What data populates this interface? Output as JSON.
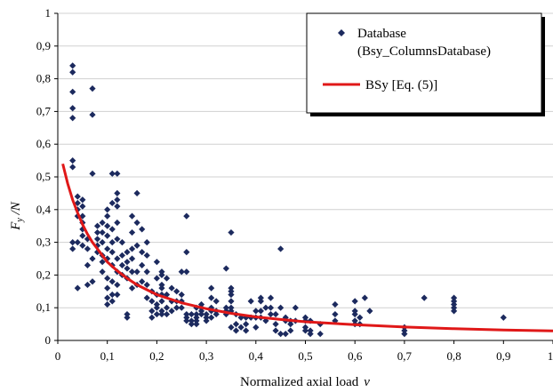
{
  "chart_data": {
    "type": "scatter",
    "xlabel_text": "Normalized axial load",
    "xlabel_symbol": "ν",
    "ylabel_main": "F",
    "ylabel_sub": "y",
    "ylabel_rest": " /N",
    "xlim": [
      0,
      1
    ],
    "ylim": [
      0,
      1
    ],
    "xticks": [
      "0",
      "0,1",
      "0,2",
      "0,3",
      "0,4",
      "0,5",
      "0,6",
      "0,7",
      "0,8",
      "0,9",
      "1"
    ],
    "yticks": [
      "0",
      "0,1",
      "0,2",
      "0,3",
      "0,4",
      "0,5",
      "0,6",
      "0,7",
      "0,8",
      "0,9",
      "1"
    ],
    "grid": true,
    "legend_position": "top-right",
    "series": [
      {
        "name_line1": "Database",
        "name_line2": "(Bsy_ColumnsDatabase)",
        "kind": "scatter",
        "color": "#1c2a5e",
        "points": [
          [
            0.03,
            0.84
          ],
          [
            0.03,
            0.82
          ],
          [
            0.03,
            0.76
          ],
          [
            0.03,
            0.71
          ],
          [
            0.03,
            0.68
          ],
          [
            0.07,
            0.77
          ],
          [
            0.07,
            0.69
          ],
          [
            0.03,
            0.55
          ],
          [
            0.03,
            0.53
          ],
          [
            0.04,
            0.44
          ],
          [
            0.04,
            0.42
          ],
          [
            0.04,
            0.4
          ],
          [
            0.04,
            0.38
          ],
          [
            0.05,
            0.43
          ],
          [
            0.05,
            0.41
          ],
          [
            0.05,
            0.38
          ],
          [
            0.05,
            0.36
          ],
          [
            0.04,
            0.3
          ],
          [
            0.03,
            0.3
          ],
          [
            0.03,
            0.28
          ],
          [
            0.05,
            0.29
          ],
          [
            0.06,
            0.28
          ],
          [
            0.06,
            0.23
          ],
          [
            0.07,
            0.25
          ],
          [
            0.07,
            0.18
          ],
          [
            0.04,
            0.16
          ],
          [
            0.06,
            0.17
          ],
          [
            0.05,
            0.34
          ],
          [
            0.05,
            0.32
          ],
          [
            0.06,
            0.31
          ],
          [
            0.07,
            0.51
          ],
          [
            0.08,
            0.35
          ],
          [
            0.08,
            0.33
          ],
          [
            0.08,
            0.31
          ],
          [
            0.08,
            0.29
          ],
          [
            0.08,
            0.27
          ],
          [
            0.09,
            0.36
          ],
          [
            0.09,
            0.33
          ],
          [
            0.09,
            0.3
          ],
          [
            0.09,
            0.26
          ],
          [
            0.09,
            0.24
          ],
          [
            0.09,
            0.21
          ],
          [
            0.1,
            0.4
          ],
          [
            0.1,
            0.38
          ],
          [
            0.1,
            0.35
          ],
          [
            0.1,
            0.32
          ],
          [
            0.1,
            0.28
          ],
          [
            0.1,
            0.25
          ],
          [
            0.1,
            0.19
          ],
          [
            0.1,
            0.16
          ],
          [
            0.1,
            0.13
          ],
          [
            0.1,
            0.11
          ],
          [
            0.11,
            0.51
          ],
          [
            0.11,
            0.42
          ],
          [
            0.11,
            0.34
          ],
          [
            0.11,
            0.3
          ],
          [
            0.11,
            0.27
          ],
          [
            0.11,
            0.23
          ],
          [
            0.11,
            0.18
          ],
          [
            0.11,
            0.14
          ],
          [
            0.11,
            0.12
          ],
          [
            0.12,
            0.51
          ],
          [
            0.12,
            0.45
          ],
          [
            0.12,
            0.43
          ],
          [
            0.12,
            0.41
          ],
          [
            0.12,
            0.36
          ],
          [
            0.12,
            0.31
          ],
          [
            0.12,
            0.25
          ],
          [
            0.12,
            0.21
          ],
          [
            0.12,
            0.17
          ],
          [
            0.12,
            0.14
          ],
          [
            0.13,
            0.3
          ],
          [
            0.13,
            0.26
          ],
          [
            0.13,
            0.23
          ],
          [
            0.13,
            0.2
          ],
          [
            0.14,
            0.27
          ],
          [
            0.14,
            0.24
          ],
          [
            0.14,
            0.22
          ],
          [
            0.14,
            0.19
          ],
          [
            0.14,
            0.08
          ],
          [
            0.14,
            0.07
          ],
          [
            0.15,
            0.38
          ],
          [
            0.15,
            0.33
          ],
          [
            0.15,
            0.28
          ],
          [
            0.15,
            0.25
          ],
          [
            0.15,
            0.21
          ],
          [
            0.15,
            0.16
          ],
          [
            0.16,
            0.45
          ],
          [
            0.16,
            0.36
          ],
          [
            0.16,
            0.29
          ],
          [
            0.16,
            0.21
          ],
          [
            0.16,
            0.17
          ],
          [
            0.17,
            0.34
          ],
          [
            0.17,
            0.27
          ],
          [
            0.17,
            0.23
          ],
          [
            0.17,
            0.18
          ],
          [
            0.18,
            0.3
          ],
          [
            0.18,
            0.26
          ],
          [
            0.18,
            0.21
          ],
          [
            0.18,
            0.17
          ],
          [
            0.18,
            0.13
          ],
          [
            0.19,
            0.15
          ],
          [
            0.19,
            0.12
          ],
          [
            0.19,
            0.09
          ],
          [
            0.19,
            0.07
          ],
          [
            0.2,
            0.24
          ],
          [
            0.2,
            0.19
          ],
          [
            0.2,
            0.14
          ],
          [
            0.2,
            0.11
          ],
          [
            0.2,
            0.1
          ],
          [
            0.2,
            0.08
          ],
          [
            0.21,
            0.21
          ],
          [
            0.21,
            0.2
          ],
          [
            0.21,
            0.17
          ],
          [
            0.21,
            0.16
          ],
          [
            0.21,
            0.14
          ],
          [
            0.21,
            0.12
          ],
          [
            0.21,
            0.09
          ],
          [
            0.21,
            0.08
          ],
          [
            0.22,
            0.19
          ],
          [
            0.22,
            0.14
          ],
          [
            0.22,
            0.1
          ],
          [
            0.22,
            0.08
          ],
          [
            0.23,
            0.16
          ],
          [
            0.23,
            0.12
          ],
          [
            0.23,
            0.09
          ],
          [
            0.24,
            0.15
          ],
          [
            0.24,
            0.12
          ],
          [
            0.24,
            0.1
          ],
          [
            0.25,
            0.21
          ],
          [
            0.25,
            0.14
          ],
          [
            0.25,
            0.12
          ],
          [
            0.25,
            0.1
          ],
          [
            0.26,
            0.38
          ],
          [
            0.26,
            0.27
          ],
          [
            0.26,
            0.21
          ],
          [
            0.26,
            0.08
          ],
          [
            0.26,
            0.07
          ],
          [
            0.26,
            0.06
          ],
          [
            0.27,
            0.08
          ],
          [
            0.27,
            0.06
          ],
          [
            0.27,
            0.05
          ],
          [
            0.28,
            0.1
          ],
          [
            0.28,
            0.08
          ],
          [
            0.28,
            0.07
          ],
          [
            0.28,
            0.06
          ],
          [
            0.28,
            0.05
          ],
          [
            0.29,
            0.11
          ],
          [
            0.29,
            0.1
          ],
          [
            0.29,
            0.09
          ],
          [
            0.29,
            0.08
          ],
          [
            0.3,
            0.08
          ],
          [
            0.3,
            0.07
          ],
          [
            0.3,
            0.06
          ],
          [
            0.31,
            0.16
          ],
          [
            0.31,
            0.13
          ],
          [
            0.31,
            0.1
          ],
          [
            0.31,
            0.09
          ],
          [
            0.31,
            0.07
          ],
          [
            0.32,
            0.12
          ],
          [
            0.32,
            0.09
          ],
          [
            0.32,
            0.08
          ],
          [
            0.34,
            0.22
          ],
          [
            0.34,
            0.1
          ],
          [
            0.34,
            0.09
          ],
          [
            0.34,
            0.08
          ],
          [
            0.35,
            0.33
          ],
          [
            0.35,
            0.16
          ],
          [
            0.35,
            0.15
          ],
          [
            0.35,
            0.14
          ],
          [
            0.35,
            0.12
          ],
          [
            0.35,
            0.1
          ],
          [
            0.35,
            0.09
          ],
          [
            0.35,
            0.04
          ],
          [
            0.36,
            0.08
          ],
          [
            0.36,
            0.05
          ],
          [
            0.36,
            0.03
          ],
          [
            0.37,
            0.07
          ],
          [
            0.37,
            0.04
          ],
          [
            0.38,
            0.07
          ],
          [
            0.38,
            0.05
          ],
          [
            0.38,
            0.03
          ],
          [
            0.39,
            0.12
          ],
          [
            0.39,
            0.07
          ],
          [
            0.4,
            0.09
          ],
          [
            0.4,
            0.07
          ],
          [
            0.4,
            0.04
          ],
          [
            0.41,
            0.13
          ],
          [
            0.41,
            0.12
          ],
          [
            0.41,
            0.09
          ],
          [
            0.41,
            0.07
          ],
          [
            0.42,
            0.1
          ],
          [
            0.42,
            0.06
          ],
          [
            0.43,
            0.13
          ],
          [
            0.43,
            0.1
          ],
          [
            0.43,
            0.08
          ],
          [
            0.44,
            0.08
          ],
          [
            0.44,
            0.05
          ],
          [
            0.44,
            0.03
          ],
          [
            0.45,
            0.28
          ],
          [
            0.45,
            0.1
          ],
          [
            0.45,
            0.02
          ],
          [
            0.46,
            0.07
          ],
          [
            0.46,
            0.06
          ],
          [
            0.46,
            0.02
          ],
          [
            0.47,
            0.06
          ],
          [
            0.47,
            0.05
          ],
          [
            0.47,
            0.03
          ],
          [
            0.48,
            0.1
          ],
          [
            0.48,
            0.06
          ],
          [
            0.5,
            0.07
          ],
          [
            0.5,
            0.06
          ],
          [
            0.5,
            0.04
          ],
          [
            0.5,
            0.03
          ],
          [
            0.51,
            0.06
          ],
          [
            0.51,
            0.03
          ],
          [
            0.51,
            0.02
          ],
          [
            0.53,
            0.05
          ],
          [
            0.53,
            0.02
          ],
          [
            0.56,
            0.11
          ],
          [
            0.56,
            0.08
          ],
          [
            0.56,
            0.06
          ],
          [
            0.6,
            0.12
          ],
          [
            0.6,
            0.09
          ],
          [
            0.6,
            0.08
          ],
          [
            0.6,
            0.06
          ],
          [
            0.6,
            0.05
          ],
          [
            0.61,
            0.07
          ],
          [
            0.61,
            0.05
          ],
          [
            0.62,
            0.13
          ],
          [
            0.63,
            0.09
          ],
          [
            0.7,
            0.04
          ],
          [
            0.7,
            0.03
          ],
          [
            0.7,
            0.02
          ],
          [
            0.74,
            0.13
          ],
          [
            0.8,
            0.13
          ],
          [
            0.8,
            0.12
          ],
          [
            0.8,
            0.11
          ],
          [
            0.8,
            0.1
          ],
          [
            0.8,
            0.09
          ],
          [
            0.9,
            0.07
          ]
        ]
      },
      {
        "name": "BSy  [Eq. (5)]",
        "kind": "line",
        "color": "#e01818",
        "points": [
          [
            0.01,
            0.54
          ],
          [
            0.02,
            0.48
          ],
          [
            0.03,
            0.43
          ],
          [
            0.04,
            0.39
          ],
          [
            0.05,
            0.355
          ],
          [
            0.06,
            0.325
          ],
          [
            0.07,
            0.3
          ],
          [
            0.08,
            0.28
          ],
          [
            0.09,
            0.26
          ],
          [
            0.1,
            0.24
          ],
          [
            0.12,
            0.213
          ],
          [
            0.14,
            0.19
          ],
          [
            0.16,
            0.17
          ],
          [
            0.18,
            0.155
          ],
          [
            0.2,
            0.14
          ],
          [
            0.25,
            0.115
          ],
          [
            0.3,
            0.097
          ],
          [
            0.35,
            0.083
          ],
          [
            0.4,
            0.072
          ],
          [
            0.45,
            0.064
          ],
          [
            0.5,
            0.057
          ],
          [
            0.6,
            0.048
          ],
          [
            0.7,
            0.041
          ],
          [
            0.8,
            0.036
          ],
          [
            0.9,
            0.032
          ],
          [
            1.0,
            0.029
          ]
        ]
      }
    ]
  }
}
